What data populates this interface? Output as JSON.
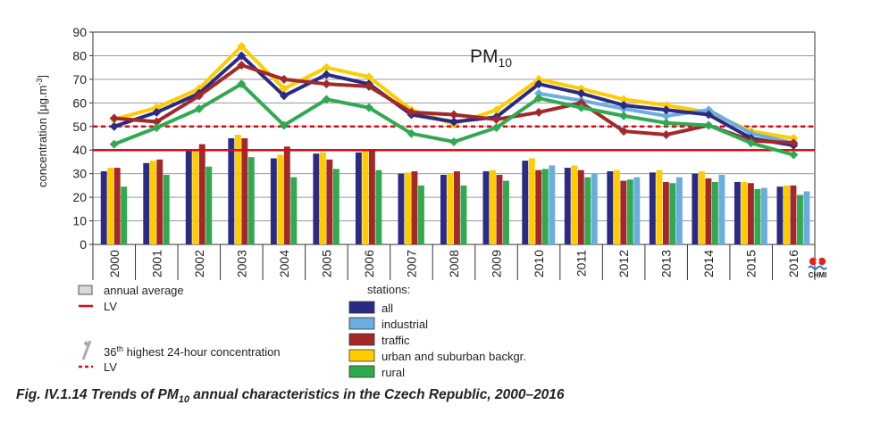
{
  "chart_data": {
    "type": "bar",
    "title": "PM",
    "title_sub": "10",
    "ylabel": "concentration [µg.m",
    "ylabel_sup": "-3",
    "ylabel_end": "]",
    "ylim": [
      0,
      90
    ],
    "yticks": [
      "0",
      "10",
      "20",
      "30",
      "40",
      "50",
      "60",
      "70",
      "80",
      "90"
    ],
    "grid": true,
    "categories": [
      "2000",
      "2001",
      "2002",
      "2003",
      "2004",
      "2005",
      "2006",
      "2007",
      "2008",
      "2009",
      "2010",
      "2011",
      "2012",
      "2013",
      "2014",
      "2015",
      "2016"
    ],
    "bar_series": [
      {
        "name": "all",
        "color": "#2b2a84",
        "values": [
          31,
          34.5,
          39.5,
          45,
          36.5,
          38.5,
          39,
          30,
          29.5,
          31,
          35.5,
          32.5,
          31,
          30.5,
          30,
          26.5,
          24.5
        ]
      },
      {
        "name": "urban and suburban backgr.",
        "color": "#ffcc00",
        "values": [
          32.5,
          35.5,
          40,
          46.5,
          38,
          39,
          40,
          30.5,
          30,
          31.5,
          36.5,
          33.5,
          31.5,
          31.5,
          31,
          26.5,
          25
        ]
      },
      {
        "name": "traffic",
        "color": "#a3282a",
        "values": [
          32.5,
          36,
          42.5,
          45,
          41.5,
          36,
          40,
          31,
          31,
          29.5,
          31.5,
          31.5,
          27,
          26.5,
          28,
          26,
          25
        ]
      },
      {
        "name": "rural",
        "color": "#30a950",
        "values": [
          24.5,
          29.5,
          33,
          37,
          28.5,
          32,
          31.5,
          25,
          25,
          27,
          32,
          28.5,
          27.5,
          26,
          26.5,
          23.5,
          21
        ]
      },
      {
        "name": "industrial",
        "color": "#6aaee0",
        "values": [
          null,
          null,
          null,
          null,
          null,
          null,
          null,
          null,
          null,
          null,
          33.5,
          30,
          28.5,
          28.5,
          29.5,
          24,
          22.5
        ]
      }
    ],
    "line_series": [
      {
        "name": "urban and suburban backgr.",
        "color": "#ffcc00",
        "values": [
          53,
          58,
          66,
          84,
          66,
          75,
          71,
          57,
          51,
          57,
          70,
          66,
          61.5,
          59,
          56,
          48,
          45
        ]
      },
      {
        "name": "industrial",
        "color": "#6aaee0",
        "values": [
          null,
          null,
          null,
          null,
          null,
          null,
          null,
          null,
          null,
          null,
          64,
          61,
          57.5,
          54.5,
          57,
          47,
          43
        ]
      },
      {
        "name": "all",
        "color": "#2b2a84",
        "values": [
          50,
          56,
          64,
          80,
          63,
          72,
          68,
          55,
          52,
          54,
          68,
          64,
          59,
          57,
          55,
          45,
          42
        ]
      },
      {
        "name": "traffic",
        "color": "#a3282a",
        "values": [
          53.5,
          52,
          63,
          76,
          70,
          68,
          67,
          56,
          55,
          53,
          56,
          60,
          48,
          46.5,
          50.5,
          44,
          43
        ]
      },
      {
        "name": "rural",
        "color": "#30a950",
        "values": [
          42.5,
          49.5,
          57.5,
          68,
          50.5,
          61.5,
          58,
          47,
          43.5,
          49.5,
          62,
          58,
          54.5,
          51.5,
          50.5,
          43,
          38
        ]
      }
    ],
    "limit_values": {
      "annual_LV": 40,
      "daily_LV_36th": 50
    }
  },
  "legend": {
    "annual_average": "annual average",
    "lv": "LV",
    "stations_title": "stations:",
    "stations": [
      {
        "label": "all",
        "color": "#2b2a84"
      },
      {
        "label": "industrial",
        "color": "#6aaee0"
      },
      {
        "label": "traffic",
        "color": "#a3282a"
      },
      {
        "label": "urban and suburban backgr.",
        "color": "#ffcc00"
      },
      {
        "label": "rural",
        "color": "#30a950"
      }
    ],
    "highest_pre": "36",
    "highest_sup": "th",
    "highest_post": " highest 24-hour concentration",
    "lv2": "LV"
  },
  "logo_text": "CHMI",
  "caption": {
    "pre": "Fig. IV.1.14  Trends of PM",
    "sub": "10",
    "post": " annual characteristics in the Czech Republic, 2000–2016"
  }
}
